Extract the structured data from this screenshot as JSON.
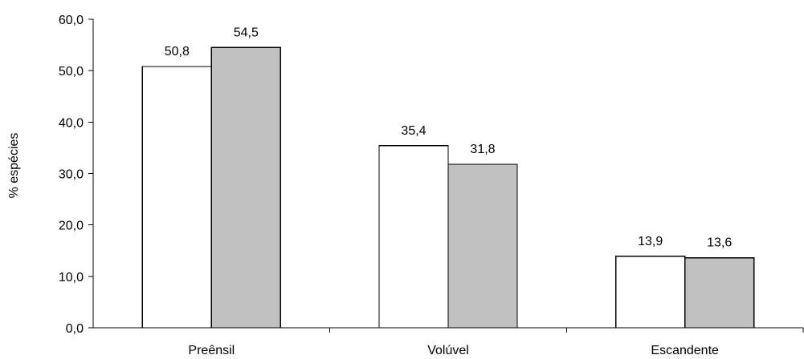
{
  "chart_data": {
    "type": "bar",
    "categories": [
      "Preênsil",
      "Volúvel",
      "Escandente"
    ],
    "series": [
      {
        "values": [
          50.8,
          35.4,
          13.9
        ],
        "color": "#ffffff"
      },
      {
        "values": [
          54.5,
          31.8,
          13.6
        ],
        "color": "#c0c0c0"
      }
    ],
    "data_labels": [
      [
        "50,8",
        "35,4",
        "13,9"
      ],
      [
        "54,5",
        "31,8",
        "13,6"
      ]
    ],
    "ylabel": "% espécies",
    "ylim": [
      0,
      60
    ],
    "yticks": [
      0,
      10,
      20,
      30,
      40,
      50,
      60
    ],
    "ytick_labels": [
      "0,0",
      "10,0",
      "20,0",
      "30,0",
      "40,0",
      "50,0",
      "60,0"
    ],
    "grid": false,
    "legend": "none"
  }
}
